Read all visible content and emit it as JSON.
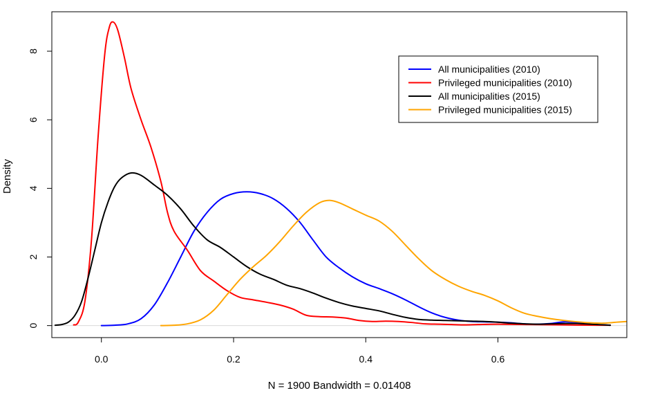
{
  "chart_data": {
    "type": "line",
    "title": "",
    "xlabel": "N = 1900   Bandwidth = 0.01408",
    "ylabel": "Density",
    "xlim": [
      -0.075,
      0.795
    ],
    "ylim": [
      -0.35,
      9.15
    ],
    "x_ticks": [
      0.0,
      0.2,
      0.4,
      0.6
    ],
    "x_tick_labels": [
      "0.0",
      "0.2",
      "0.4",
      "0.6"
    ],
    "y_ticks": [
      0,
      2,
      4,
      6,
      8
    ],
    "y_tick_labels": [
      "0",
      "2",
      "4",
      "6",
      "8"
    ],
    "grid": false,
    "legend_position": "top-right",
    "series": [
      {
        "name": "All municipalities (2010)",
        "color": "#0000ff",
        "points": [
          [
            0.0,
            0.0
          ],
          [
            0.02,
            0.01
          ],
          [
            0.04,
            0.05
          ],
          [
            0.06,
            0.2
          ],
          [
            0.08,
            0.6
          ],
          [
            0.1,
            1.25
          ],
          [
            0.12,
            2.0
          ],
          [
            0.14,
            2.75
          ],
          [
            0.16,
            3.3
          ],
          [
            0.18,
            3.68
          ],
          [
            0.2,
            3.85
          ],
          [
            0.22,
            3.9
          ],
          [
            0.24,
            3.85
          ],
          [
            0.26,
            3.7
          ],
          [
            0.28,
            3.42
          ],
          [
            0.3,
            3.02
          ],
          [
            0.32,
            2.5
          ],
          [
            0.34,
            2.0
          ],
          [
            0.36,
            1.68
          ],
          [
            0.38,
            1.42
          ],
          [
            0.4,
            1.22
          ],
          [
            0.42,
            1.08
          ],
          [
            0.44,
            0.93
          ],
          [
            0.46,
            0.75
          ],
          [
            0.48,
            0.55
          ],
          [
            0.5,
            0.37
          ],
          [
            0.52,
            0.24
          ],
          [
            0.54,
            0.16
          ],
          [
            0.56,
            0.12
          ],
          [
            0.58,
            0.11
          ],
          [
            0.6,
            0.1
          ],
          [
            0.62,
            0.08
          ],
          [
            0.64,
            0.05
          ],
          [
            0.66,
            0.04
          ],
          [
            0.68,
            0.06
          ],
          [
            0.7,
            0.11
          ],
          [
            0.72,
            0.09
          ],
          [
            0.74,
            0.04
          ],
          [
            0.76,
            0.02
          ],
          [
            0.77,
            0.01
          ]
        ]
      },
      {
        "name": "Privileged municipalities (2010)",
        "color": "#ff0000",
        "points": [
          [
            -0.042,
            0.02
          ],
          [
            -0.035,
            0.1
          ],
          [
            -0.025,
            0.7
          ],
          [
            -0.015,
            2.5
          ],
          [
            -0.005,
            5.5
          ],
          [
            0.005,
            7.9
          ],
          [
            0.012,
            8.7
          ],
          [
            0.018,
            8.85
          ],
          [
            0.025,
            8.6
          ],
          [
            0.035,
            7.8
          ],
          [
            0.045,
            6.9
          ],
          [
            0.06,
            6.0
          ],
          [
            0.075,
            5.2
          ],
          [
            0.09,
            4.2
          ],
          [
            0.1,
            3.3
          ],
          [
            0.11,
            2.75
          ],
          [
            0.13,
            2.2
          ],
          [
            0.15,
            1.6
          ],
          [
            0.17,
            1.3
          ],
          [
            0.19,
            1.02
          ],
          [
            0.21,
            0.82
          ],
          [
            0.23,
            0.75
          ],
          [
            0.25,
            0.68
          ],
          [
            0.27,
            0.6
          ],
          [
            0.29,
            0.48
          ],
          [
            0.31,
            0.3
          ],
          [
            0.33,
            0.26
          ],
          [
            0.35,
            0.25
          ],
          [
            0.37,
            0.22
          ],
          [
            0.39,
            0.15
          ],
          [
            0.41,
            0.12
          ],
          [
            0.43,
            0.13
          ],
          [
            0.45,
            0.12
          ],
          [
            0.47,
            0.09
          ],
          [
            0.49,
            0.05
          ],
          [
            0.51,
            0.04
          ],
          [
            0.53,
            0.03
          ],
          [
            0.55,
            0.02
          ],
          [
            0.57,
            0.03
          ],
          [
            0.6,
            0.04
          ],
          [
            0.65,
            0.03
          ],
          [
            0.7,
            0.02
          ],
          [
            0.75,
            0.01
          ],
          [
            0.77,
            0.01
          ]
        ]
      },
      {
        "name": "All municipalities (2015)",
        "color": "#000000",
        "points": [
          [
            -0.07,
            0.01
          ],
          [
            -0.06,
            0.03
          ],
          [
            -0.05,
            0.1
          ],
          [
            -0.04,
            0.3
          ],
          [
            -0.03,
            0.7
          ],
          [
            -0.02,
            1.4
          ],
          [
            -0.01,
            2.2
          ],
          [
            0.0,
            3.0
          ],
          [
            0.01,
            3.6
          ],
          [
            0.02,
            4.05
          ],
          [
            0.03,
            4.3
          ],
          [
            0.045,
            4.45
          ],
          [
            0.06,
            4.38
          ],
          [
            0.08,
            4.1
          ],
          [
            0.1,
            3.8
          ],
          [
            0.12,
            3.4
          ],
          [
            0.14,
            2.9
          ],
          [
            0.16,
            2.5
          ],
          [
            0.18,
            2.28
          ],
          [
            0.2,
            2.0
          ],
          [
            0.22,
            1.72
          ],
          [
            0.24,
            1.5
          ],
          [
            0.26,
            1.35
          ],
          [
            0.28,
            1.18
          ],
          [
            0.3,
            1.08
          ],
          [
            0.32,
            0.95
          ],
          [
            0.34,
            0.8
          ],
          [
            0.36,
            0.67
          ],
          [
            0.38,
            0.57
          ],
          [
            0.4,
            0.5
          ],
          [
            0.42,
            0.43
          ],
          [
            0.44,
            0.33
          ],
          [
            0.46,
            0.24
          ],
          [
            0.48,
            0.18
          ],
          [
            0.5,
            0.16
          ],
          [
            0.52,
            0.15
          ],
          [
            0.54,
            0.14
          ],
          [
            0.56,
            0.13
          ],
          [
            0.58,
            0.12
          ],
          [
            0.6,
            0.1
          ],
          [
            0.62,
            0.07
          ],
          [
            0.64,
            0.05
          ],
          [
            0.66,
            0.04
          ],
          [
            0.68,
            0.05
          ],
          [
            0.7,
            0.06
          ],
          [
            0.72,
            0.06
          ],
          [
            0.74,
            0.04
          ],
          [
            0.76,
            0.02
          ],
          [
            0.77,
            0.01
          ]
        ]
      },
      {
        "name": "Privileged municipalities (2015)",
        "color": "#ffa500",
        "points": [
          [
            0.09,
            0.0
          ],
          [
            0.11,
            0.01
          ],
          [
            0.13,
            0.05
          ],
          [
            0.15,
            0.17
          ],
          [
            0.17,
            0.45
          ],
          [
            0.19,
            0.9
          ],
          [
            0.21,
            1.35
          ],
          [
            0.23,
            1.72
          ],
          [
            0.25,
            2.05
          ],
          [
            0.27,
            2.45
          ],
          [
            0.29,
            2.9
          ],
          [
            0.31,
            3.3
          ],
          [
            0.33,
            3.58
          ],
          [
            0.345,
            3.65
          ],
          [
            0.36,
            3.58
          ],
          [
            0.38,
            3.4
          ],
          [
            0.4,
            3.22
          ],
          [
            0.42,
            3.05
          ],
          [
            0.44,
            2.75
          ],
          [
            0.46,
            2.35
          ],
          [
            0.48,
            1.95
          ],
          [
            0.5,
            1.6
          ],
          [
            0.52,
            1.35
          ],
          [
            0.54,
            1.15
          ],
          [
            0.56,
            1.0
          ],
          [
            0.58,
            0.88
          ],
          [
            0.6,
            0.72
          ],
          [
            0.62,
            0.52
          ],
          [
            0.64,
            0.36
          ],
          [
            0.66,
            0.27
          ],
          [
            0.68,
            0.2
          ],
          [
            0.7,
            0.15
          ],
          [
            0.72,
            0.11
          ],
          [
            0.74,
            0.08
          ],
          [
            0.76,
            0.07
          ],
          [
            0.78,
            0.1
          ],
          [
            0.795,
            0.12
          ]
        ]
      }
    ]
  }
}
